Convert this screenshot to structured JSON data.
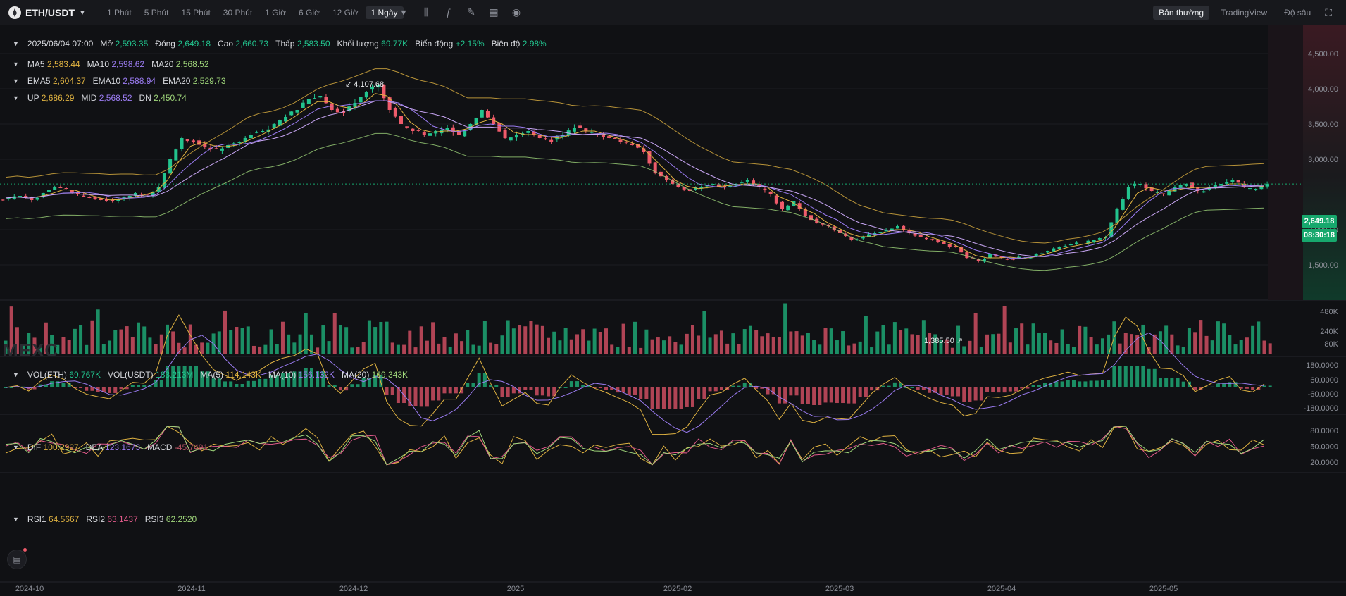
{
  "header": {
    "symbol": "ETH/USDT",
    "intervals": [
      "1 Phút",
      "5 Phút",
      "15 Phút",
      "30 Phút",
      "1 Giờ",
      "6 Giờ",
      "12 Giờ",
      "1 Ngày"
    ],
    "active_interval": "1 Ngày",
    "views": [
      "Bản thường",
      "TradingView",
      "Độ sâu"
    ],
    "active_view": "Bản thường"
  },
  "ohlc": {
    "date": "2025/06/04 07:00",
    "open_label": "Mở",
    "open": "2,593.35",
    "close_label": "Đóng",
    "close": "2,649.18",
    "high_label": "Cao",
    "high": "2,660.73",
    "low_label": "Thấp",
    "low": "2,583.50",
    "volume_label": "Khối lượng",
    "volume": "69.77K",
    "change_label": "Biến động",
    "change": "+2.15%",
    "amplitude_label": "Biên độ",
    "amplitude": "2.98%"
  },
  "ma": {
    "ma5_label": "MA5",
    "ma5": "2,583.44",
    "ma10_label": "MA10",
    "ma10": "2,598.62",
    "ma20_label": "MA20",
    "ma20": "2,568.52"
  },
  "ema": {
    "ema5_label": "EMA5",
    "ema5": "2,604.37",
    "ema10_label": "EMA10",
    "ema10": "2,588.94",
    "ema20_label": "EMA20",
    "ema20": "2,529.73"
  },
  "boll": {
    "up_label": "UP",
    "up": "2,686.29",
    "mid_label": "MID",
    "mid": "2,568.52",
    "dn_label": "DN",
    "dn": "2,450.74"
  },
  "vol": {
    "eth_label": "VOL(ETH)",
    "eth": "69.767K",
    "usdt_label": "VOL(USDT)",
    "usdt": "183.213M",
    "ma5_label": "MA(5)",
    "ma5": "114.143K",
    "ma10_label": "MA(10)",
    "ma10": "156.132K",
    "ma20_label": "MA(20)",
    "ma20": "169.343K"
  },
  "macd": {
    "dif_label": "DIF",
    "dif": "100.2927",
    "dea_label": "DEA",
    "dea": "123.1673",
    "macd_label": "MACD",
    "macd": "-45.7491"
  },
  "rsi": {
    "rsi1_label": "RSI1",
    "rsi1": "64.5667",
    "rsi2_label": "RSI2",
    "rsi2": "63.1437",
    "rsi3_label": "RSI3",
    "rsi3": "62.2520"
  },
  "price_tag": {
    "price": "2,649.18",
    "countdown": "08:30:18"
  },
  "annotations": {
    "high": "4,107.68",
    "low": "1,385.50"
  },
  "watermark": "MEXC",
  "colors": {
    "up": "#22c48e",
    "down": "#ef5b6b",
    "ma5": "#e0b341",
    "ma10": "#9b7cf2",
    "ma20": "#9fd67a",
    "bg": "#101114"
  },
  "chart_data": {
    "type": "candlestick",
    "x_tick_labels": [
      "2024-10",
      "2024-11",
      "2024-12",
      "2025",
      "2025-02",
      "2025-03",
      "2025-04",
      "2025-05"
    ],
    "price_axis": {
      "ticks": [
        "4,500.00",
        "4,000.00",
        "3,500.00",
        "3,000.00",
        "2,000.00",
        "1,500.00"
      ],
      "ylim": [
        1200,
        4800
      ]
    },
    "volume_axis": {
      "ticks": [
        "480K",
        "240K",
        "80K"
      ]
    },
    "macd_axis": {
      "ticks": [
        "180.0000",
        "60.0000",
        "-60.0000",
        "-180.0000"
      ]
    },
    "rsi_axis": {
      "ticks": [
        "80.0000",
        "50.0000",
        "20.0000"
      ]
    },
    "key_prices": [
      2450,
      2480,
      2420,
      2520,
      2600,
      2580,
      2500,
      2450,
      2420,
      2400,
      2460,
      2520,
      2500,
      2600,
      3000,
      3300,
      3250,
      3180,
      3150,
      3200,
      3250,
      3350,
      3400,
      3500,
      3600,
      3700,
      3850,
      3900,
      3700,
      3650,
      3800,
      3950,
      4050,
      3700,
      3500,
      3400,
      3350,
      3400,
      3450,
      3350,
      3500,
      3700,
      3500,
      3300,
      3350,
      3400,
      3300,
      3250,
      3350,
      3450,
      3400,
      3350,
      3300,
      3250,
      3200,
      3100,
      2800,
      2700,
      2600,
      2550,
      2600,
      2650,
      2600,
      2650,
      2700,
      2600,
      2500,
      2300,
      2400,
      2200,
      2100,
      2050,
      1950,
      1850,
      1900,
      1950,
      2000,
      2050,
      1950,
      1900,
      1850,
      1800,
      1750,
      1600,
      1550,
      1650,
      1600,
      1580,
      1600,
      1650,
      1700,
      1750,
      1800,
      1800,
      1850,
      1900,
      2300,
      2600,
      2650,
      2550,
      2500,
      2600,
      2650,
      2550,
      2600,
      2650,
      2700,
      2600,
      2580,
      2649
    ],
    "last_close": 2649.18,
    "period_high": 4107.68,
    "period_low": 1385.5
  }
}
